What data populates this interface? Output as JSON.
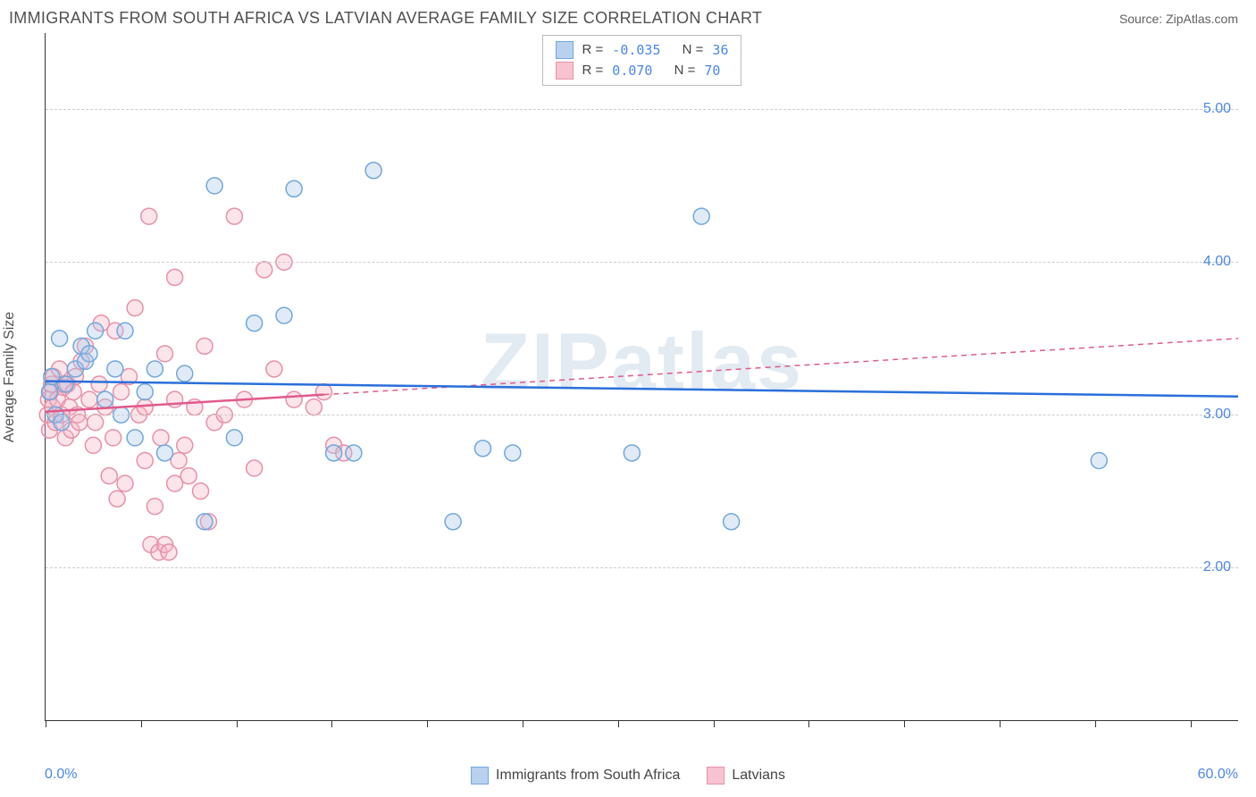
{
  "title": "IMMIGRANTS FROM SOUTH AFRICA VS LATVIAN AVERAGE FAMILY SIZE CORRELATION CHART",
  "source_label": "Source: ",
  "source_name": "ZipAtlas.com",
  "ylabel": "Average Family Size",
  "watermark": "ZIPatlas",
  "chart": {
    "type": "scatter-correlation",
    "xlim": [
      0,
      60
    ],
    "ylim": [
      1.0,
      5.5
    ],
    "y_gridlines": [
      2.0,
      3.0,
      4.0,
      5.0
    ],
    "ytick_labels": [
      "2.00",
      "3.00",
      "4.00",
      "5.00"
    ],
    "x_ticks_pct": [
      0,
      8,
      16,
      24,
      32,
      40,
      48,
      56,
      64,
      72,
      80,
      88,
      96
    ],
    "x_start_label": "0.0%",
    "x_end_label": "60.0%",
    "background": "#ffffff",
    "grid_color": "#cccccc",
    "axis_color": "#333333",
    "ylabel_color": "#4a86e8",
    "marker_radius": 9,
    "marker_stroke_width": 1.5,
    "marker_fill_opacity": 0.35
  },
  "series": {
    "blue": {
      "label": "Immigrants from South Africa",
      "color_stroke": "#6fa8dc",
      "color_fill": "#a9c7ea",
      "swatch_fill": "#b9d0ee",
      "swatch_border": "#6fa8dc",
      "R": "-0.035",
      "N": "36",
      "trend": {
        "y_at_x0": 3.22,
        "y_at_x60": 3.12,
        "solid_to_x": 60,
        "color": "#2a6fdb",
        "width": 2.5
      },
      "points": [
        [
          0.2,
          3.15
        ],
        [
          0.3,
          3.25
        ],
        [
          0.5,
          3.0
        ],
        [
          0.7,
          3.5
        ],
        [
          0.8,
          2.95
        ],
        [
          1.0,
          3.2
        ],
        [
          1.5,
          3.3
        ],
        [
          1.8,
          3.45
        ],
        [
          2.0,
          3.35
        ],
        [
          2.2,
          3.4
        ],
        [
          2.5,
          3.55
        ],
        [
          3.0,
          3.1
        ],
        [
          3.5,
          3.3
        ],
        [
          3.8,
          3.0
        ],
        [
          4.0,
          3.55
        ],
        [
          4.5,
          2.85
        ],
        [
          5.0,
          3.15
        ],
        [
          5.5,
          3.3
        ],
        [
          6.0,
          2.75
        ],
        [
          7.0,
          3.27
        ],
        [
          8.0,
          2.3
        ],
        [
          8.5,
          4.5
        ],
        [
          9.5,
          2.85
        ],
        [
          10.5,
          3.6
        ],
        [
          12.0,
          3.65
        ],
        [
          12.5,
          4.48
        ],
        [
          14.5,
          2.75
        ],
        [
          15.5,
          2.75
        ],
        [
          16.5,
          4.6
        ],
        [
          20.5,
          2.3
        ],
        [
          22.0,
          2.78
        ],
        [
          23.5,
          2.75
        ],
        [
          29.5,
          2.75
        ],
        [
          33.0,
          4.3
        ],
        [
          34.5,
          2.3
        ],
        [
          53.0,
          2.7
        ]
      ]
    },
    "pink": {
      "label": "Latvians",
      "color_stroke": "#e890a8",
      "color_fill": "#f4b4c4",
      "swatch_fill": "#f7c3d0",
      "swatch_border": "#e890a8",
      "R": " 0.070",
      "N": "70",
      "trend": {
        "y_at_x0": 3.02,
        "y_at_x60": 3.5,
        "solid_to_x": 14,
        "color": "#e05a8a",
        "width": 2.5,
        "dash": "6,5"
      },
      "points": [
        [
          0.1,
          3.0
        ],
        [
          0.15,
          3.1
        ],
        [
          0.2,
          2.9
        ],
        [
          0.25,
          3.15
        ],
        [
          0.3,
          3.2
        ],
        [
          0.35,
          3.05
        ],
        [
          0.4,
          3.25
        ],
        [
          0.5,
          2.95
        ],
        [
          0.6,
          3.1
        ],
        [
          0.7,
          3.3
        ],
        [
          0.8,
          3.0
        ],
        [
          0.9,
          3.18
        ],
        [
          1.0,
          2.85
        ],
        [
          1.1,
          3.2
        ],
        [
          1.2,
          3.05
        ],
        [
          1.3,
          2.9
        ],
        [
          1.4,
          3.15
        ],
        [
          1.5,
          3.25
        ],
        [
          1.6,
          3.0
        ],
        [
          1.7,
          2.95
        ],
        [
          1.8,
          3.35
        ],
        [
          2.0,
          3.45
        ],
        [
          2.2,
          3.1
        ],
        [
          2.4,
          2.8
        ],
        [
          2.5,
          2.95
        ],
        [
          2.7,
          3.2
        ],
        [
          2.8,
          3.6
        ],
        [
          3.0,
          3.05
        ],
        [
          3.2,
          2.6
        ],
        [
          3.4,
          2.85
        ],
        [
          3.5,
          3.55
        ],
        [
          3.6,
          2.45
        ],
        [
          3.8,
          3.15
        ],
        [
          4.0,
          2.55
        ],
        [
          4.2,
          3.25
        ],
        [
          4.5,
          3.7
        ],
        [
          4.7,
          3.0
        ],
        [
          5.0,
          2.7
        ],
        [
          5.0,
          3.05
        ],
        [
          5.2,
          4.3
        ],
        [
          5.3,
          2.15
        ],
        [
          5.5,
          2.4
        ],
        [
          5.7,
          2.1
        ],
        [
          5.8,
          2.85
        ],
        [
          6.0,
          2.15
        ],
        [
          6.0,
          3.4
        ],
        [
          6.2,
          2.1
        ],
        [
          6.5,
          3.1
        ],
        [
          6.5,
          2.55
        ],
        [
          6.5,
          3.9
        ],
        [
          6.7,
          2.7
        ],
        [
          7.0,
          2.8
        ],
        [
          7.2,
          2.6
        ],
        [
          7.5,
          3.05
        ],
        [
          7.8,
          2.5
        ],
        [
          8.0,
          3.45
        ],
        [
          8.2,
          2.3
        ],
        [
          8.5,
          2.95
        ],
        [
          9.0,
          3.0
        ],
        [
          9.5,
          4.3
        ],
        [
          10.0,
          3.1
        ],
        [
          10.5,
          2.65
        ],
        [
          11.0,
          3.95
        ],
        [
          11.5,
          3.3
        ],
        [
          12.0,
          4.0
        ],
        [
          12.5,
          3.1
        ],
        [
          13.5,
          3.05
        ],
        [
          14.0,
          3.15
        ],
        [
          14.5,
          2.8
        ],
        [
          15.0,
          2.75
        ]
      ]
    }
  },
  "legend_top": {
    "R_label": "R =",
    "N_label": "N ="
  },
  "bottom_legend_order": [
    "blue",
    "pink"
  ]
}
